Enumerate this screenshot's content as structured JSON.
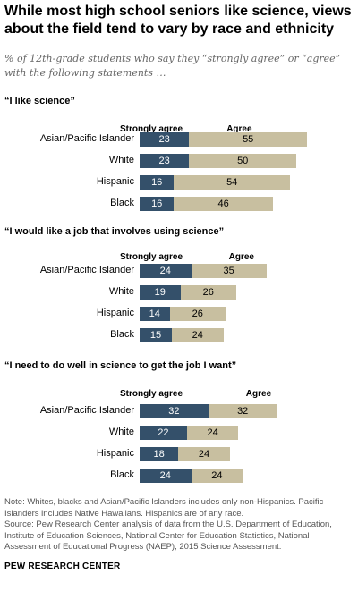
{
  "title": "While most high school seniors like science, views about the field tend to vary by race and ethnicity",
  "subtitle": "% of 12th-grade students who say they “strongly agree” or “agree” with the following statements …",
  "colors": {
    "strongly_agree": "#34506a",
    "agree": "#c8bfa0"
  },
  "chart_data": [
    {
      "type": "bar",
      "orientation": "horizontal",
      "stacked": true,
      "title": "“I like science”",
      "categories": [
        "Asian/Pacific Islander",
        "White",
        "Hispanic",
        "Black"
      ],
      "series": [
        {
          "name": "Strongly agree",
          "values": [
            23,
            23,
            16,
            16
          ]
        },
        {
          "name": "Agree",
          "values": [
            55,
            50,
            54,
            46
          ]
        }
      ]
    },
    {
      "type": "bar",
      "orientation": "horizontal",
      "stacked": true,
      "title": "“I would like a job that involves  using science”",
      "categories": [
        "Asian/Pacific Islander",
        "White",
        "Hispanic",
        "Black"
      ],
      "series": [
        {
          "name": "Strongly agree",
          "values": [
            24,
            19,
            14,
            15
          ]
        },
        {
          "name": "Agree",
          "values": [
            35,
            26,
            26,
            24
          ]
        }
      ]
    },
    {
      "type": "bar",
      "orientation": "horizontal",
      "stacked": true,
      "title": "“I need to do well in science to get the job I want”",
      "categories": [
        "Asian/Pacific Islander",
        "White",
        "Hispanic",
        "Black"
      ],
      "series": [
        {
          "name": "Strongly agree",
          "values": [
            32,
            22,
            18,
            24
          ]
        },
        {
          "name": "Agree",
          "values": [
            32,
            24,
            24,
            24
          ]
        }
      ]
    }
  ],
  "notes": {
    "note": "Note:  Whites, blacks and Asian/Pacific Islanders includes only non-Hispanics. Pacific Islanders includes Native Hawaiians. Hispanics are of any race.",
    "source": "Source: Pew Research Center analysis of data from the U.S. Department of Education, Institute of Education Sciences, National Center for Education Statistics, National Assessment of Educational Progress (NAEP), 2015 Science Assessment."
  },
  "brand": "PEW RESEARCH CENTER"
}
